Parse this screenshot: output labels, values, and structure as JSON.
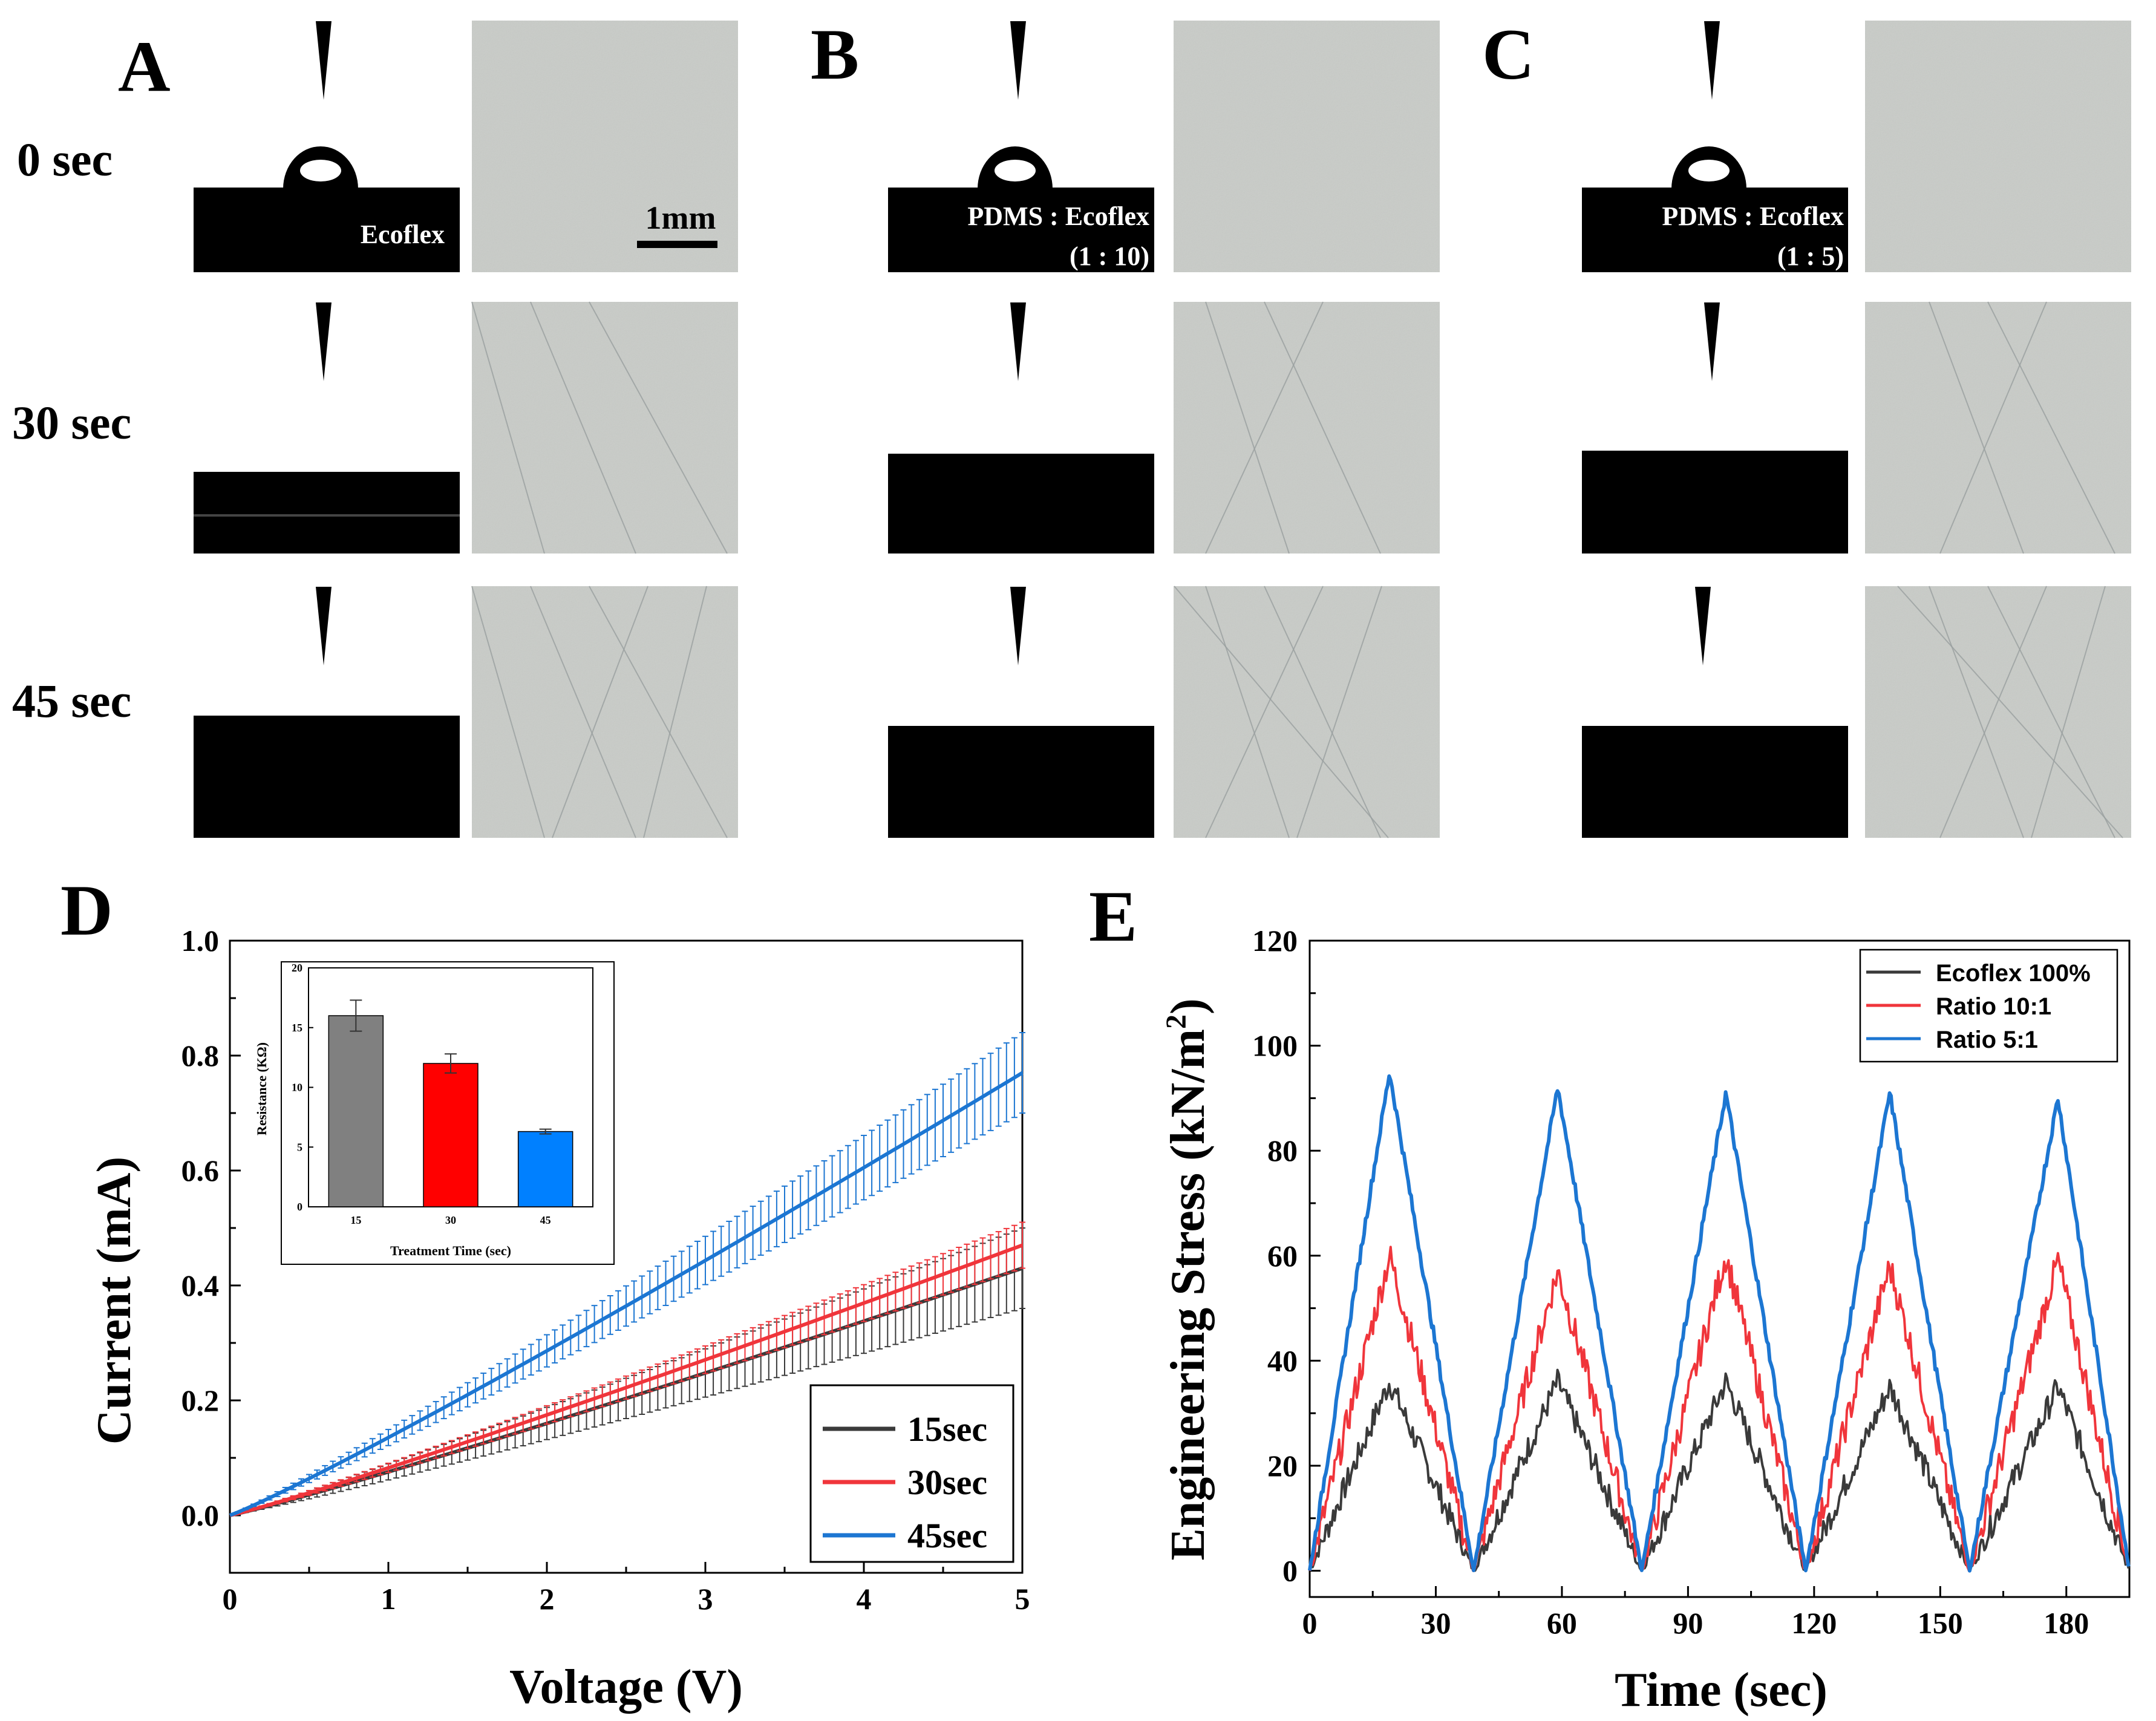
{
  "panels": {
    "A": {
      "letter": "A"
    },
    "B": {
      "letter": "B"
    },
    "C": {
      "letter": "C"
    },
    "D": {
      "letter": "D"
    },
    "E": {
      "letter": "E"
    }
  },
  "rows": [
    "0 sec",
    "30 sec",
    "45 sec"
  ],
  "image_labels": {
    "a_sample": "Ecoflex",
    "b_sample": "PDMS : Ecoflex",
    "b_ratio": "(1 : 10)",
    "c_sample": "PDMS : Ecoflex",
    "c_ratio": "(1 : 5)",
    "scale": "1mm"
  },
  "colors": {
    "gray": "#3a3a3a",
    "red": "#f0353b",
    "blue": "#1c76d2",
    "inset_gray": "#808080",
    "inset_red": "#ff0000",
    "inset_blue": "#0080ff",
    "micro_bg": "#c9ccc8"
  },
  "chart_data": [
    {
      "panel": "D",
      "type": "line",
      "xlabel": "Voltage (V)",
      "ylabel": "Current (mA)",
      "xlim": [
        0,
        5
      ],
      "ylim": [
        -0.1,
        1.0
      ],
      "xticks": [
        "0",
        "1",
        "2",
        "3",
        "4",
        "5"
      ],
      "yticks": [
        "0.0",
        "0.2",
        "0.4",
        "0.6",
        "0.8",
        "1.0"
      ],
      "series": [
        {
          "name": "15sec",
          "color": "#3a3a3a",
          "x": [
            0,
            5
          ],
          "y": [
            0.0,
            0.43
          ],
          "err_at_end": 0.07
        },
        {
          "name": "30sec",
          "color": "#f0353b",
          "x": [
            0,
            5
          ],
          "y": [
            0.0,
            0.47
          ],
          "err_at_end": 0.04
        },
        {
          "name": "45sec",
          "color": "#1c76d2",
          "x": [
            0,
            5
          ],
          "y": [
            0.0,
            0.77
          ],
          "err_at_end": 0.07
        }
      ],
      "inset": {
        "type": "bar",
        "xlabel": "Treatment Time (sec)",
        "ylabel": "Resistance (KΩ)",
        "ylim": [
          0,
          20
        ],
        "yticks": [
          "0",
          "5",
          "10",
          "15",
          "20"
        ],
        "categories": [
          "15",
          "30",
          "45"
        ],
        "values": [
          16.0,
          12.0,
          6.3
        ],
        "errors": [
          1.3,
          0.8,
          0.2
        ]
      }
    },
    {
      "panel": "E",
      "type": "line",
      "xlabel": "Time (sec)",
      "ylabel": "Engineering Stress (kN/m",
      "ylabel_sup": "2",
      "ylabel_end": ")",
      "xlim": [
        0,
        195
      ],
      "ylim": [
        -5,
        120
      ],
      "xticks": [
        "0",
        "30",
        "60",
        "90",
        "120",
        "150",
        "180"
      ],
      "yticks": [
        "0",
        "20",
        "40",
        "60",
        "80",
        "100",
        "120"
      ],
      "cycle_peaks_x": [
        19,
        59,
        99,
        138,
        178
      ],
      "cycle_valleys_x": [
        0,
        39,
        79,
        118,
        157,
        195
      ],
      "series": [
        {
          "name": "Ecoflex 100%",
          "color": "#3a3a3a",
          "peaks": [
            36,
            36,
            36,
            35,
            35
          ]
        },
        {
          "name": "Ratio 10:1",
          "color": "#f0353b",
          "peaks": [
            60,
            57,
            60,
            58,
            59
          ]
        },
        {
          "name": "Ratio 5:1",
          "color": "#1c76d2",
          "peaks": [
            95,
            92,
            91,
            91,
            90
          ]
        }
      ]
    }
  ]
}
